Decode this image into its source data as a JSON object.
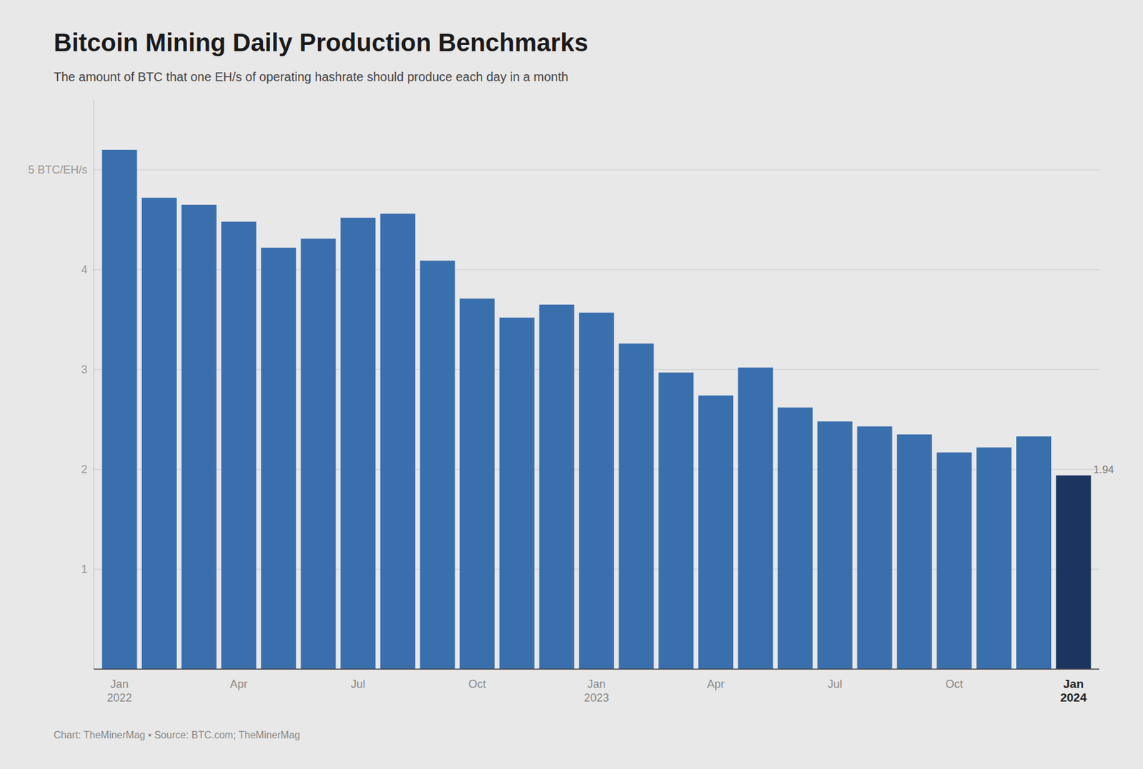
{
  "chart_data": {
    "type": "bar",
    "title": "Bitcoin Mining Daily Production Benchmarks",
    "subtitle": "The amount of BTC that one EH/s of operating hashrate should produce each day in a month",
    "source": "Chart: TheMinerMag • Source: BTC.com; TheMinerMag",
    "categories": [
      "Jan\n2022",
      null,
      null,
      "Apr",
      null,
      null,
      "Jul",
      null,
      null,
      "Oct",
      null,
      null,
      "Jan\n2023",
      null,
      null,
      "Apr",
      null,
      null,
      "Jul",
      null,
      null,
      "Oct",
      null,
      null,
      "Jan\n2024"
    ],
    "values": [
      5.2,
      4.72,
      4.65,
      4.48,
      4.22,
      4.31,
      4.52,
      4.56,
      4.09,
      3.71,
      3.52,
      3.65,
      3.57,
      3.26,
      2.97,
      2.74,
      3.02,
      2.62,
      2.48,
      2.43,
      2.35,
      2.17,
      2.22,
      2.33,
      1.94
    ],
    "value_labels": [
      null,
      null,
      null,
      null,
      null,
      null,
      null,
      null,
      null,
      null,
      null,
      null,
      null,
      null,
      null,
      null,
      null,
      null,
      null,
      null,
      null,
      null,
      null,
      null,
      "1.94"
    ],
    "colors": [
      "#3a6fae",
      "#3a6fae",
      "#3a6fae",
      "#3a6fae",
      "#3a6fae",
      "#3a6fae",
      "#3a6fae",
      "#3a6fae",
      "#3a6fae",
      "#3a6fae",
      "#3a6fae",
      "#3a6fae",
      "#3a6fae",
      "#3a6fae",
      "#3a6fae",
      "#3a6fae",
      "#3a6fae",
      "#3a6fae",
      "#3a6fae",
      "#3a6fae",
      "#3a6fae",
      "#3a6fae",
      "#3a6fae",
      "#3a6fae",
      "#1c3560"
    ],
    "ylim": [
      0,
      5.7
    ],
    "yticks": [
      1,
      2,
      3,
      4,
      {
        "value": 5,
        "label": "5 BTC/EH/s"
      }
    ],
    "grid": true
  }
}
